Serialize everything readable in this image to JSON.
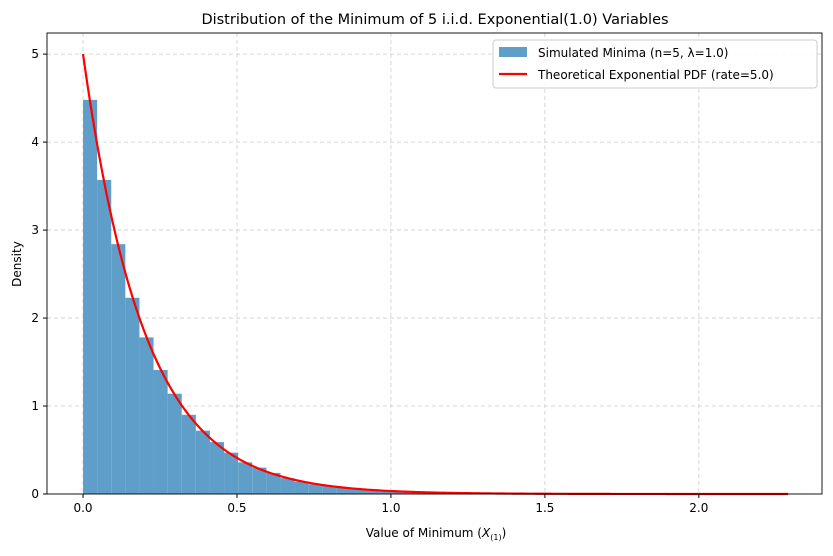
{
  "chart_data": {
    "type": "bar",
    "title": "Distribution of the Minimum of 5 i.i.d. Exponential(1.0) Variables",
    "xlabel_main": "Value of Minimum (",
    "xlabel_var": "X",
    "xlabel_sub": "(1)",
    "xlabel_end": ")",
    "ylabel": "Density",
    "xlim": [
      -0.117,
      2.4
    ],
    "ylim": [
      0,
      5.24
    ],
    "xticks": [
      "0.0",
      "0.5",
      "1.0",
      "1.5",
      "2.0"
    ],
    "yticks": [
      "0",
      "1",
      "2",
      "3",
      "4",
      "5"
    ],
    "grid": true,
    "legend_placement": "top-right",
    "histogram": {
      "name": "Simulated Minima (n=5, λ=1.0)",
      "color": "#5f9ec9",
      "bin_start": 0.0,
      "bin_width": 0.0458,
      "values": [
        4.48,
        3.57,
        2.84,
        2.23,
        1.78,
        1.41,
        1.14,
        0.9,
        0.72,
        0.59,
        0.47,
        0.36,
        0.3,
        0.24,
        0.18,
        0.14,
        0.11,
        0.09,
        0.07,
        0.06,
        0.05,
        0.04,
        0.03,
        0.02,
        0.02,
        0.01,
        0.01,
        0.01,
        0.01,
        0.005,
        0.004,
        0.003,
        0.003,
        0.002,
        0.002,
        0.001,
        0.001,
        0.001,
        0.001,
        0.001,
        0,
        0,
        0,
        0,
        0,
        0,
        0,
        0,
        0,
        0.001
      ]
    },
    "curve": {
      "name": "Theoretical Exponential PDF (rate=5.0)",
      "color": "#ff0000",
      "rate": 5.0,
      "x_range": [
        0,
        2.29
      ]
    }
  }
}
